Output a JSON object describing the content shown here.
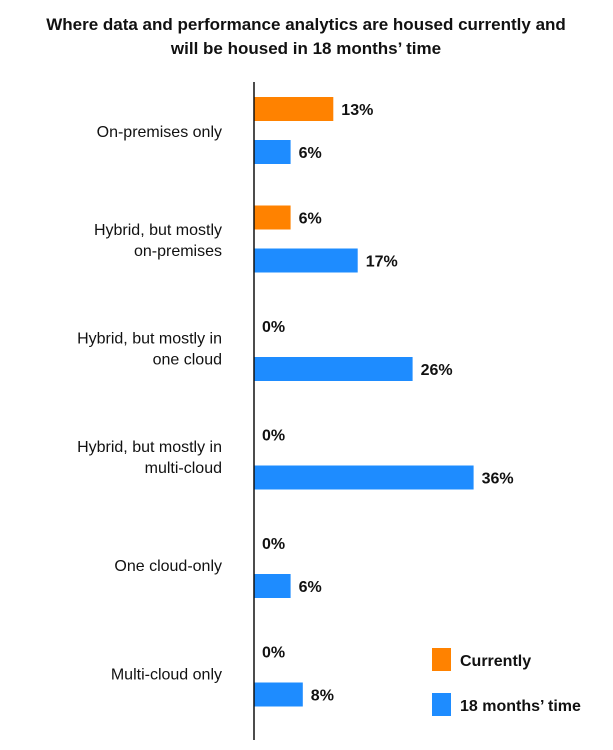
{
  "chart_data": {
    "type": "bar",
    "orientation": "horizontal",
    "title": [
      "Where data and performance analytics are housed currently and",
      "will be housed in 18 months’ time"
    ],
    "categories": [
      [
        "On-premises only"
      ],
      [
        "Hybrid, but mostly",
        "on-premises"
      ],
      [
        "Hybrid, but mostly in",
        "one cloud"
      ],
      [
        "Hybrid, but mostly in",
        "multi-cloud"
      ],
      [
        "One cloud-only"
      ],
      [
        "Multi-cloud only"
      ]
    ],
    "series": [
      {
        "name": "Currently",
        "color": "#FF8200",
        "values": [
          13,
          6,
          0,
          0,
          0,
          0
        ]
      },
      {
        "name": "18 months’ time",
        "color": "#1E8CFF",
        "values": [
          6,
          17,
          26,
          36,
          6,
          8
        ]
      }
    ],
    "value_suffix": "%",
    "xlim": [
      0,
      40
    ],
    "grid": false,
    "legend": "bottom-right"
  }
}
